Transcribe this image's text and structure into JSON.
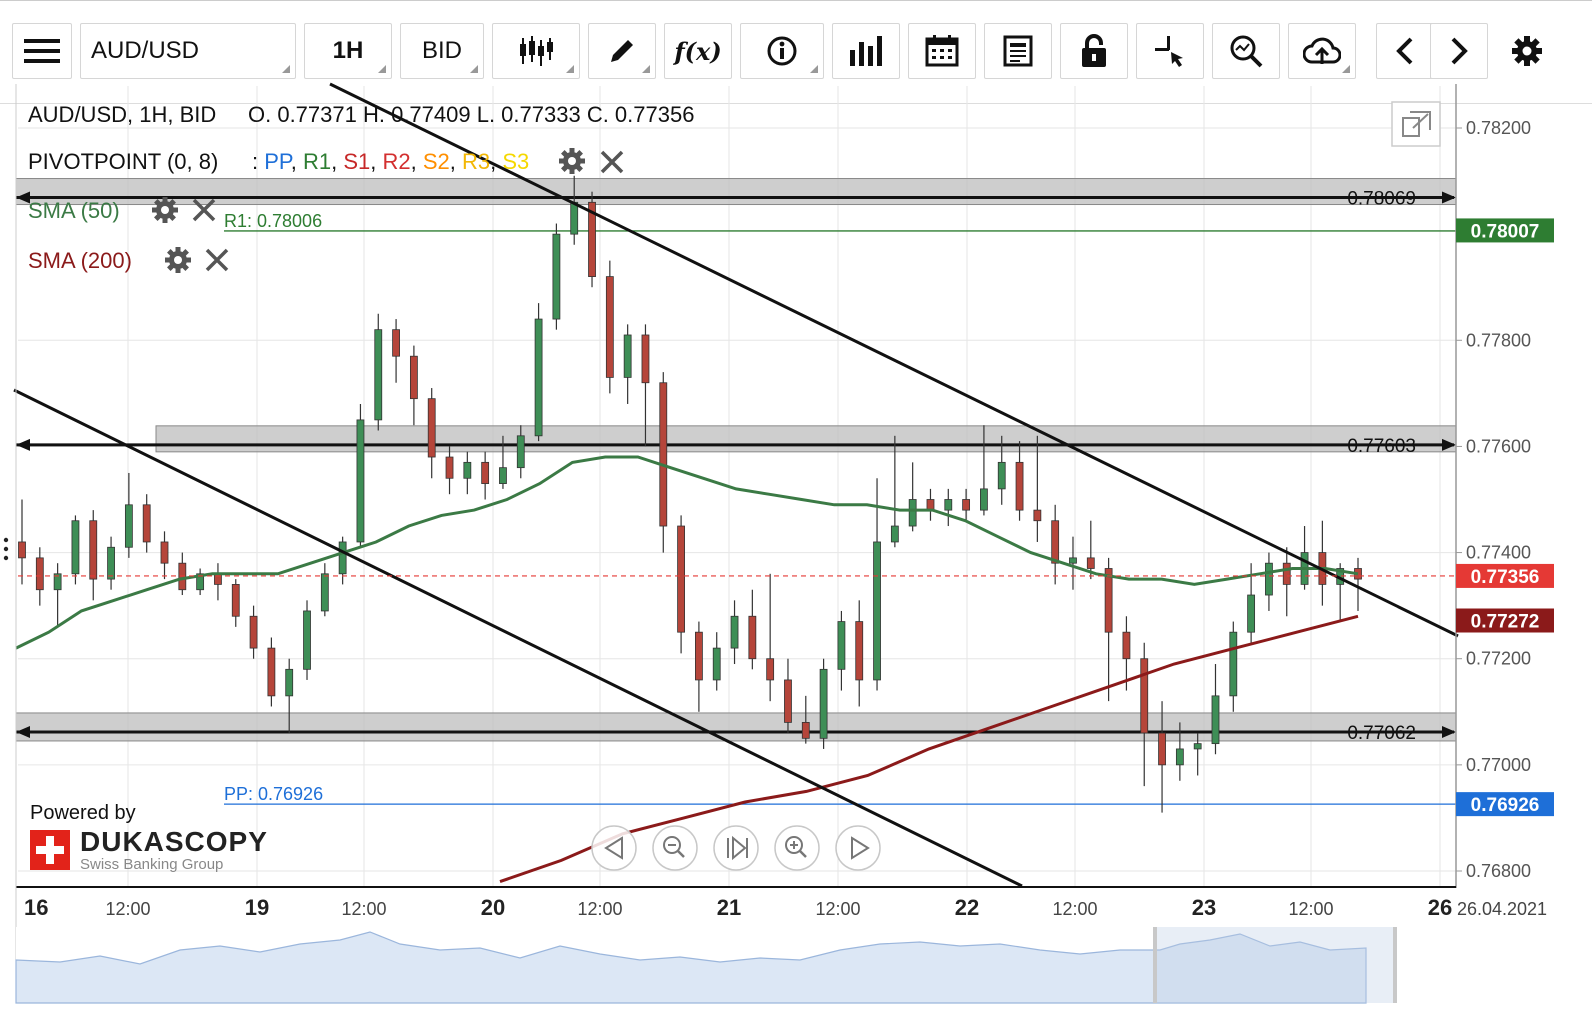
{
  "toolbar": {
    "symbol": "AUD/USD",
    "timeframe": "1H",
    "price_side": "BID",
    "icons": [
      "menu-icon",
      "candlestick-icon",
      "pen-icon",
      "fx-icon",
      "info-icon",
      "bar-chart-icon",
      "calendar-icon",
      "news-icon",
      "lock-icon",
      "crosshair-icon",
      "zoom-icon",
      "cloud-upload-icon",
      "chevron-left-icon",
      "chevron-right-icon",
      "gear-icon"
    ]
  },
  "legend": {
    "ohlc_title": "AUD/USD, 1H, BID",
    "ohlc_values": "O. 0.77371 H. 0.77409 L. 0.77333 C. 0.77356",
    "pivot_label": "PIVOTPOINT (0, 8)",
    "pivot_colon": ":",
    "pivot_items": [
      {
        "text": "PP",
        "color": "#1e6fd8"
      },
      {
        "text": "R1",
        "color": "#2e7d32"
      },
      {
        "text": "S1",
        "color": "#c62828"
      },
      {
        "text": "R2",
        "color": "#d32f2f"
      },
      {
        "text": "S2",
        "color": "#ff8f00"
      },
      {
        "text": "R3",
        "color": "#f2b705"
      },
      {
        "text": "S3",
        "color": "#f5d800"
      }
    ],
    "sma50_label": "SMA (50)",
    "sma200_label": "SMA (200)"
  },
  "brand": {
    "powered_by": "Powered by",
    "name": "DUKASCOPY",
    "tagline": "Swiss Banking Group"
  },
  "chart_data": {
    "type": "candlestick",
    "symbol": "AUD/USD",
    "timeframe": "1H",
    "y_range": [
      0.7678,
      0.7823
    ],
    "y_ticks": [
      "0.78200",
      "0.77800",
      "0.77600",
      "0.77400",
      "0.77200",
      "0.77000",
      "0.76800"
    ],
    "y_tick_values": [
      0.782,
      0.778,
      0.776,
      0.774,
      0.772,
      0.77,
      0.768
    ],
    "x_labels": [
      "16",
      "12:00",
      "19",
      "12:00",
      "20",
      "12:00",
      "21",
      "12:00",
      "22",
      "12:00",
      "23",
      "12:00",
      "26",
      "26.04.2021"
    ],
    "price_tags": [
      {
        "text": "0.78007",
        "value": 0.78007,
        "color": "#2e7d32"
      },
      {
        "text": "0.77356",
        "value": 0.77356,
        "color": "#e53935"
      },
      {
        "text": "0.77272",
        "value": 0.77272,
        "color": "#8b1a1a"
      },
      {
        "text": "0.76926",
        "value": 0.76926,
        "color": "#1e6fd8"
      }
    ],
    "levels": [
      {
        "text": "0.78069",
        "value": 0.78069
      },
      {
        "text": "0.77603",
        "value": 0.77603
      },
      {
        "text": "0.77062",
        "value": 0.77062
      }
    ],
    "pivots": [
      {
        "name": "R1",
        "text": "R1: 0.78006",
        "value": 0.78006,
        "color": "#2e7d32"
      },
      {
        "name": "PP",
        "text": "PP: 0.76926",
        "value": 0.76926,
        "color": "#1e6fd8"
      }
    ],
    "current_price": 0.77356,
    "sma50": [
      0.7722,
      0.7725,
      0.7729,
      0.7731,
      0.7733,
      0.7735,
      0.7736,
      0.7736,
      0.7736,
      0.7738,
      0.774,
      0.7742,
      0.7745,
      0.7747,
      0.7748,
      0.775,
      0.7753,
      0.7757,
      0.7758,
      0.7758,
      0.7756,
      0.7754,
      0.7752,
      0.7751,
      0.775,
      0.7749,
      0.7749,
      0.7748,
      0.7748,
      0.7746,
      0.7743,
      0.774,
      0.7738,
      0.7736,
      0.7735,
      0.7735,
      0.7734,
      0.7735,
      0.7736,
      0.7737,
      0.7737,
      0.7736
    ],
    "sma200": [
      0.7678,
      0.7682,
      0.7687,
      0.769,
      0.7693,
      0.7695,
      0.7698,
      0.7703,
      0.7707,
      0.7711,
      0.7715,
      0.7719,
      0.7722,
      0.7725,
      0.7728
    ],
    "candles": [
      [
        0.7742,
        0.7739,
        0.775,
        0.7734
      ],
      [
        0.7739,
        0.7733,
        0.7741,
        0.773
      ],
      [
        0.7733,
        0.7736,
        0.7738,
        0.7726
      ],
      [
        0.7736,
        0.7746,
        0.7747,
        0.7734
      ],
      [
        0.7746,
        0.7735,
        0.7748,
        0.7731
      ],
      [
        0.7735,
        0.7741,
        0.7743,
        0.7733
      ],
      [
        0.7741,
        0.7749,
        0.7755,
        0.7739
      ],
      [
        0.7749,
        0.7742,
        0.7751,
        0.774
      ],
      [
        0.7742,
        0.7738,
        0.7744,
        0.7735
      ],
      [
        0.7738,
        0.7733,
        0.774,
        0.7732
      ],
      [
        0.7733,
        0.7736,
        0.7737,
        0.7732
      ],
      [
        0.7736,
        0.7734,
        0.7738,
        0.7731
      ],
      [
        0.7734,
        0.7728,
        0.7735,
        0.7726
      ],
      [
        0.7728,
        0.7722,
        0.773,
        0.772
      ],
      [
        0.7722,
        0.7713,
        0.7724,
        0.7711
      ],
      [
        0.7713,
        0.7718,
        0.772,
        0.7706
      ],
      [
        0.7718,
        0.7729,
        0.7731,
        0.7716
      ],
      [
        0.7729,
        0.7736,
        0.7738,
        0.7728
      ],
      [
        0.7736,
        0.7742,
        0.7743,
        0.7734
      ],
      [
        0.7742,
        0.7765,
        0.7768,
        0.7741
      ],
      [
        0.7765,
        0.7782,
        0.7785,
        0.7763
      ],
      [
        0.7782,
        0.7777,
        0.7784,
        0.7772
      ],
      [
        0.7777,
        0.7769,
        0.7779,
        0.7764
      ],
      [
        0.7769,
        0.7758,
        0.7771,
        0.7754
      ],
      [
        0.7758,
        0.7754,
        0.776,
        0.7751
      ],
      [
        0.7754,
        0.7757,
        0.7759,
        0.7751
      ],
      [
        0.7757,
        0.7753,
        0.7759,
        0.775
      ],
      [
        0.7753,
        0.7756,
        0.7762,
        0.7752
      ],
      [
        0.7756,
        0.7762,
        0.7764,
        0.7754
      ],
      [
        0.7762,
        0.7784,
        0.7787,
        0.7761
      ],
      [
        0.7784,
        0.78,
        0.7802,
        0.7782
      ],
      [
        0.78,
        0.7806,
        0.7811,
        0.7798
      ],
      [
        0.7806,
        0.7792,
        0.7808,
        0.779
      ],
      [
        0.7792,
        0.7773,
        0.7795,
        0.777
      ],
      [
        0.7773,
        0.7781,
        0.7783,
        0.7768
      ],
      [
        0.7781,
        0.7772,
        0.7783,
        0.776
      ],
      [
        0.7772,
        0.7745,
        0.7774,
        0.774
      ],
      [
        0.7745,
        0.7725,
        0.7747,
        0.7721
      ],
      [
        0.7725,
        0.7716,
        0.7727,
        0.771
      ],
      [
        0.7716,
        0.7722,
        0.7725,
        0.7714
      ],
      [
        0.7722,
        0.7728,
        0.7731,
        0.7719
      ],
      [
        0.7728,
        0.772,
        0.7733,
        0.7718
      ],
      [
        0.772,
        0.7716,
        0.7736,
        0.7712
      ],
      [
        0.7716,
        0.7708,
        0.772,
        0.7706
      ],
      [
        0.7708,
        0.7705,
        0.7713,
        0.7704
      ],
      [
        0.7705,
        0.7718,
        0.772,
        0.7703
      ],
      [
        0.7718,
        0.7727,
        0.7729,
        0.7714
      ],
      [
        0.7727,
        0.7716,
        0.7731,
        0.7711
      ],
      [
        0.7716,
        0.7742,
        0.7754,
        0.7714
      ],
      [
        0.7742,
        0.7745,
        0.7762,
        0.7741
      ],
      [
        0.7745,
        0.775,
        0.7757,
        0.7744
      ],
      [
        0.775,
        0.7748,
        0.7752,
        0.7746
      ],
      [
        0.7748,
        0.775,
        0.7752,
        0.7745
      ],
      [
        0.775,
        0.7748,
        0.7752,
        0.7746
      ],
      [
        0.7748,
        0.7752,
        0.7764,
        0.7747
      ],
      [
        0.7752,
        0.7757,
        0.7762,
        0.7749
      ],
      [
        0.7757,
        0.7748,
        0.7761,
        0.7746
      ],
      [
        0.7748,
        0.7746,
        0.7762,
        0.7742
      ],
      [
        0.7746,
        0.7738,
        0.7749,
        0.7734
      ],
      [
        0.7738,
        0.7739,
        0.7743,
        0.7733
      ],
      [
        0.7739,
        0.7737,
        0.7746,
        0.7735
      ],
      [
        0.7737,
        0.7725,
        0.7739,
        0.7712
      ],
      [
        0.7725,
        0.772,
        0.7728,
        0.7714
      ],
      [
        0.772,
        0.7706,
        0.7723,
        0.7696
      ],
      [
        0.7706,
        0.77,
        0.7712,
        0.7691
      ],
      [
        0.77,
        0.7703,
        0.7708,
        0.7697
      ],
      [
        0.7703,
        0.7704,
        0.7706,
        0.7698
      ],
      [
        0.7704,
        0.7713,
        0.7719,
        0.7702
      ],
      [
        0.7713,
        0.7725,
        0.7727,
        0.771
      ],
      [
        0.7725,
        0.7732,
        0.7738,
        0.7723
      ],
      [
        0.7732,
        0.7738,
        0.774,
        0.7729
      ],
      [
        0.7738,
        0.7734,
        0.7741,
        0.7728
      ],
      [
        0.7734,
        0.774,
        0.7745,
        0.7733
      ],
      [
        0.774,
        0.7734,
        0.7746,
        0.773
      ],
      [
        0.7734,
        0.7737,
        0.7738,
        0.7727
      ],
      [
        0.7737,
        0.7735,
        0.7739,
        0.7729
      ]
    ]
  }
}
